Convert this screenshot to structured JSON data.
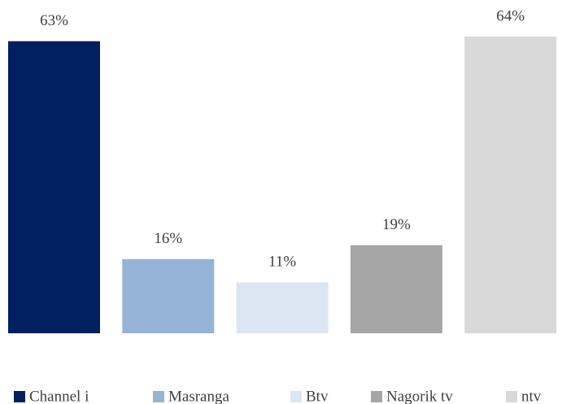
{
  "chart_data": {
    "type": "bar",
    "series": [
      {
        "name": "Channel i",
        "color": "#002060",
        "values": [
          63
        ],
        "value_labels": [
          "63%"
        ]
      },
      {
        "name": "Masranga",
        "color": "#95b3d7",
        "values": [
          16
        ],
        "value_labels": [
          "16%"
        ]
      },
      {
        "name": "Btv",
        "color": "#dce6f2",
        "values": [
          11
        ],
        "value_labels": [
          "11%"
        ]
      },
      {
        "name": "Nagorik tv",
        "color": "#a6a6a6",
        "values": [
          19
        ],
        "value_labels": [
          "19%"
        ]
      },
      {
        "name": "ntv",
        "color": "#d9d9d9",
        "values": [
          64
        ],
        "value_labels": [
          "64%"
        ]
      }
    ],
    "legend": "bottom"
  }
}
